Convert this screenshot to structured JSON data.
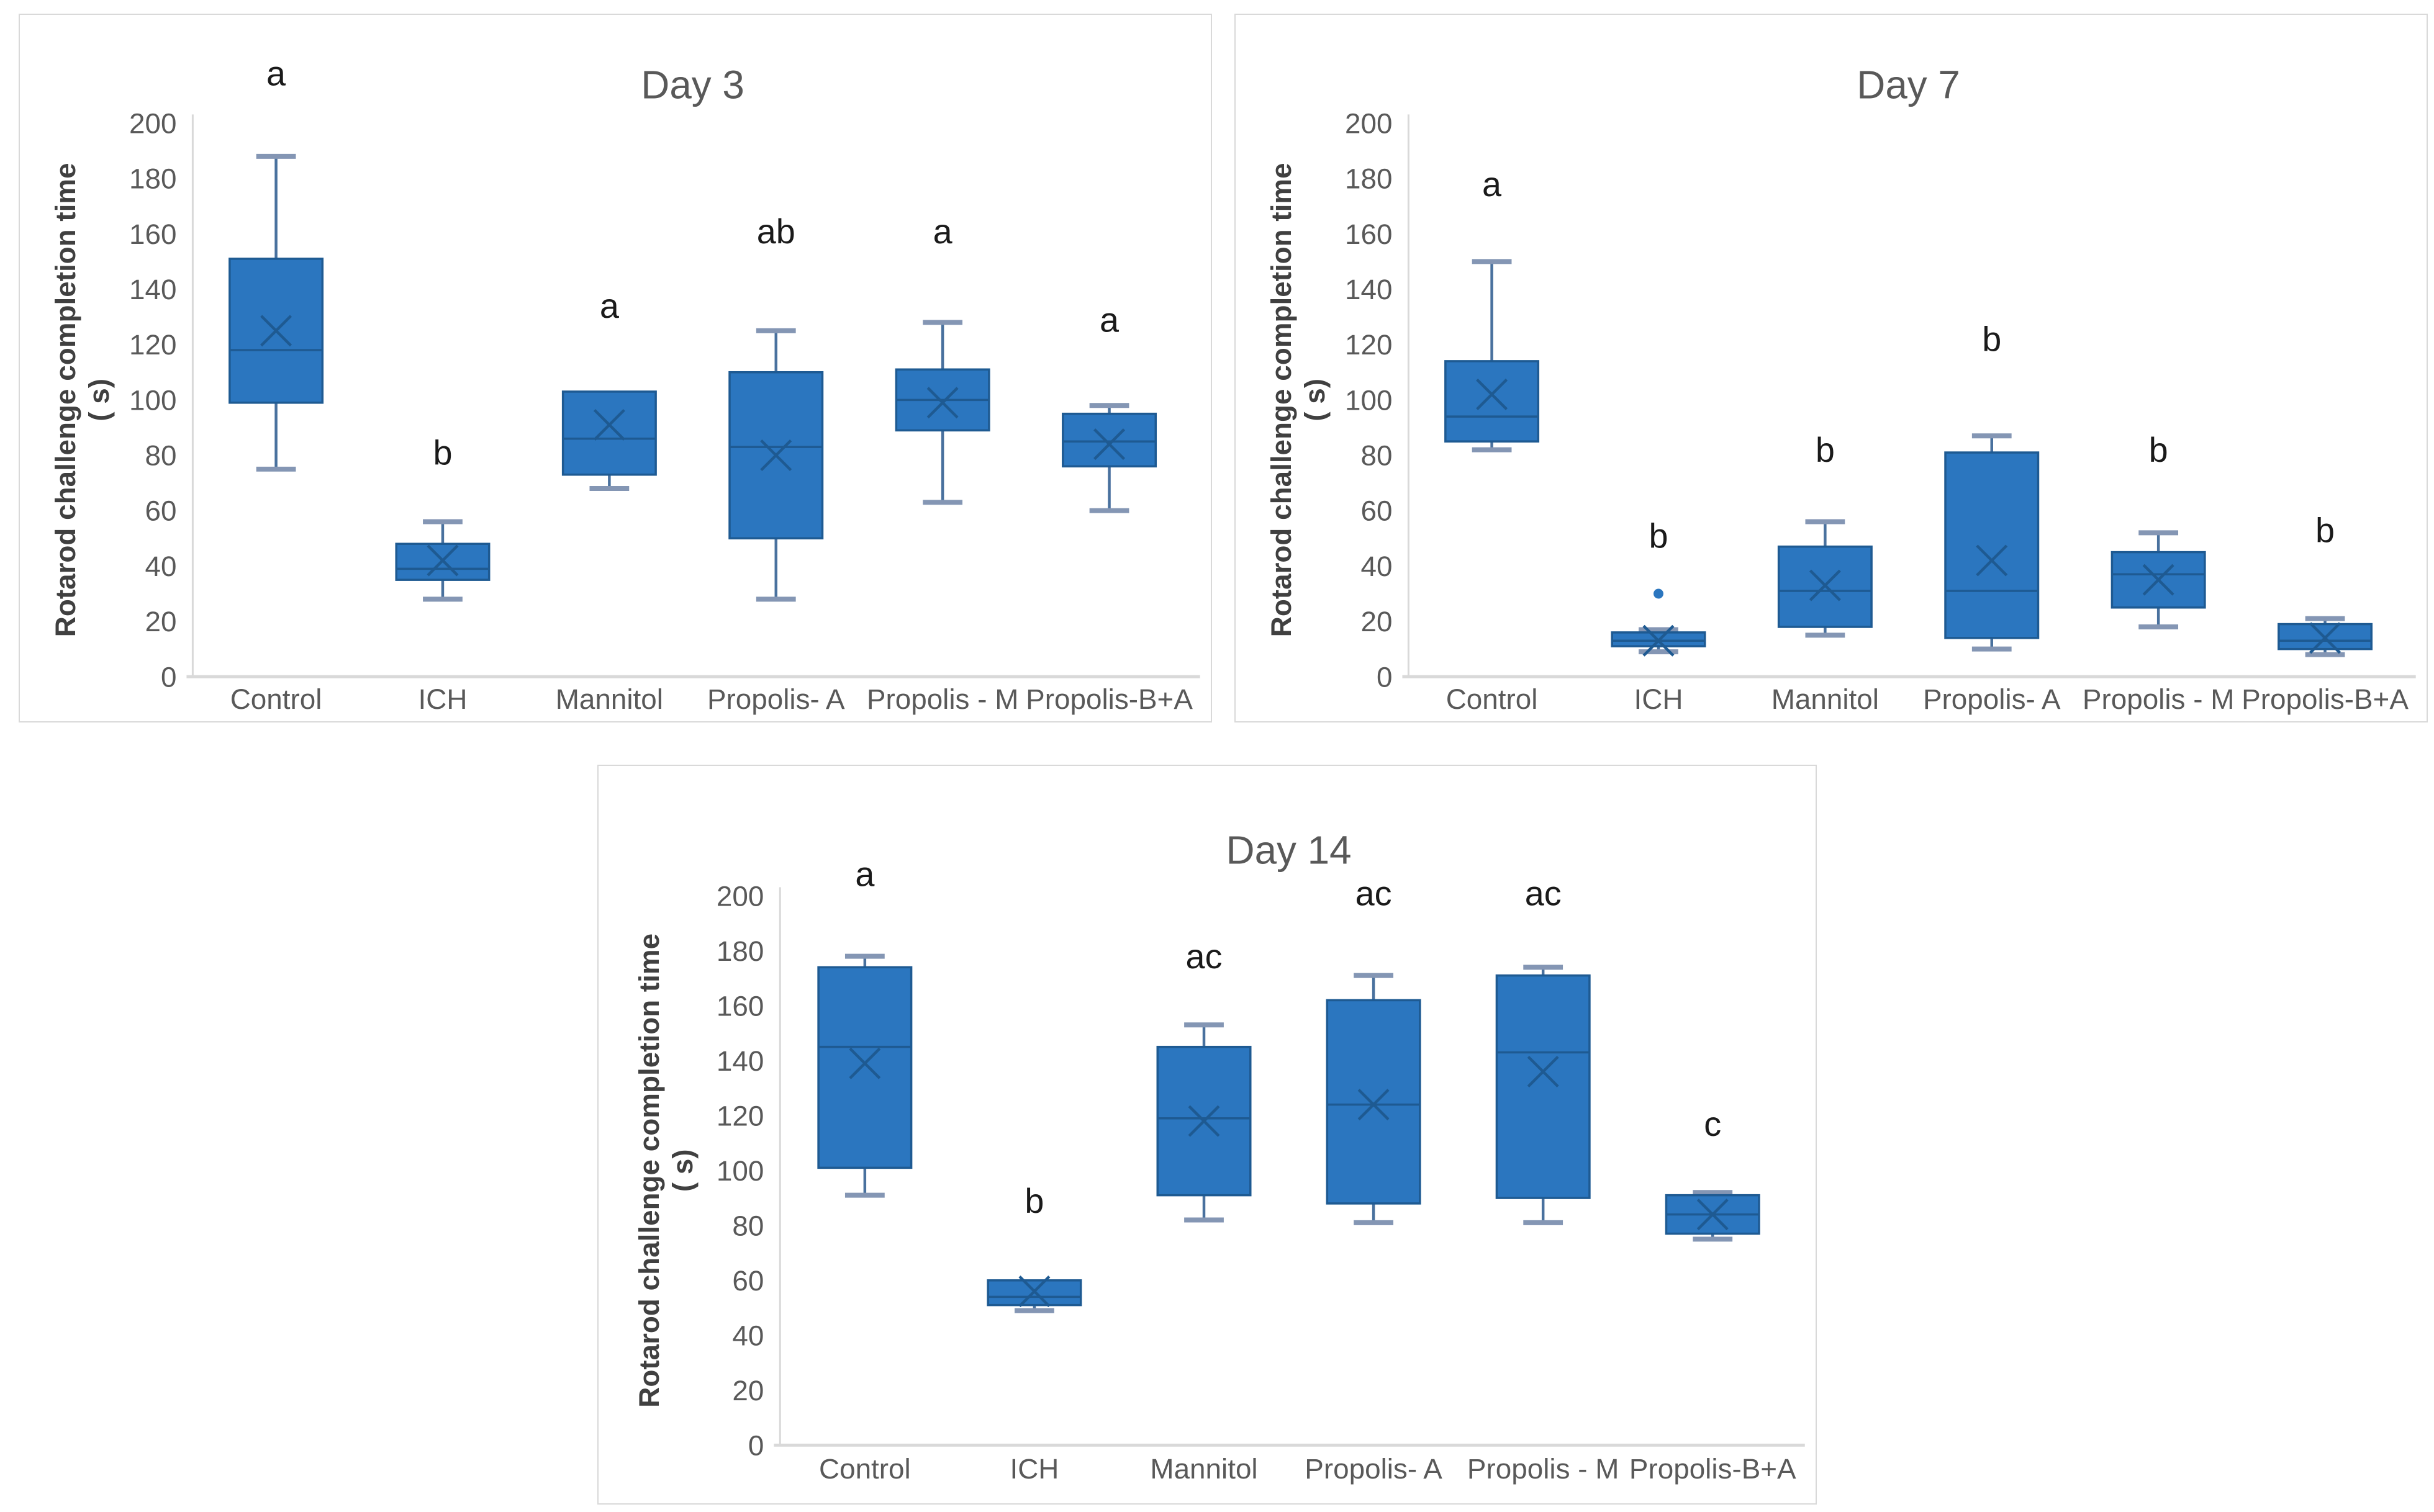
{
  "page": {
    "background": "#ffffff"
  },
  "colors": {
    "box_fill": "#2b76bf",
    "box_border": "#1e5a92",
    "median_line": "#1e5a92",
    "mean_marker": "#1e5a92",
    "whisker_line": "#49719e",
    "whisker_cap": "#8496b4",
    "outlier_dot": "#2b76bf",
    "axis_line": "#d9d9d9",
    "tick_label": "#595959",
    "category_label": "#595959",
    "title_text": "#595959",
    "letter_text": "#1a1a1a",
    "y_axis_label": "#404040",
    "panel_border": "#d9d9d9"
  },
  "y_axis_label": {
    "line1": "Rotarod challenge completion time",
    "line2": "( s)"
  },
  "chart_data": [
    {
      "type": "box",
      "title": "Day 3",
      "ylabel": "Rotarod challenge completion time ( s)",
      "ylim": [
        0,
        200
      ],
      "ytick_step": 20,
      "grid": false,
      "legend": "none",
      "categories": [
        "Control",
        "ICH",
        "Mannitol",
        "Propolis- A",
        "Propolis - M",
        "Propolis-B+A"
      ],
      "series": [
        {
          "category": "Control",
          "min": 75,
          "q1": 99,
          "median": 118,
          "mean": 125,
          "q3": 151,
          "max": 188,
          "outliers": [],
          "letter": "a",
          "letter_y": 218
        },
        {
          "category": "ICH",
          "min": 28,
          "q1": 35,
          "median": 39,
          "mean": 42,
          "q3": 48,
          "max": 56,
          "outliers": [],
          "letter": "b",
          "letter_y": 81
        },
        {
          "category": "Mannitol",
          "min": 68,
          "q1": 73,
          "median": 86,
          "mean": 91,
          "q3": 103,
          "max": 103,
          "outliers": [],
          "letter": "a",
          "letter_y": 134
        },
        {
          "category": "Propolis- A",
          "min": 28,
          "q1": 50,
          "median": 83,
          "mean": 80,
          "q3": 110,
          "max": 125,
          "outliers": [],
          "letter": "ab",
          "letter_y": 161
        },
        {
          "category": "Propolis - M",
          "min": 63,
          "q1": 89,
          "median": 100,
          "mean": 99,
          "q3": 111,
          "max": 128,
          "outliers": [],
          "letter": "a",
          "letter_y": 161
        },
        {
          "category": "Propolis-B+A",
          "min": 60,
          "q1": 76,
          "median": 85,
          "mean": 84,
          "q3": 95,
          "max": 98,
          "outliers": [],
          "letter": "a",
          "letter_y": 129
        }
      ]
    },
    {
      "type": "box",
      "title": "Day 7",
      "ylabel": "Rotarod challenge completion time ( s)",
      "ylim": [
        0,
        200
      ],
      "ytick_step": 20,
      "grid": false,
      "legend": "none",
      "categories": [
        "Control",
        "ICH",
        "Mannitol",
        "Propolis- A",
        "Propolis - M",
        "Propolis-B+A"
      ],
      "series": [
        {
          "category": "Control",
          "min": 82,
          "q1": 85,
          "median": 94,
          "mean": 102,
          "q3": 114,
          "max": 150,
          "outliers": [],
          "letter": "a",
          "letter_y": 178
        },
        {
          "category": "ICH",
          "min": 9,
          "q1": 11,
          "median": 13,
          "mean": 13,
          "q3": 16,
          "max": 17,
          "outliers": [
            30
          ],
          "letter": "b",
          "letter_y": 51
        },
        {
          "category": "Mannitol",
          "min": 15,
          "q1": 18,
          "median": 31,
          "mean": 33,
          "q3": 47,
          "max": 56,
          "outliers": [],
          "letter": "b",
          "letter_y": 82
        },
        {
          "category": "Propolis- A",
          "min": 10,
          "q1": 14,
          "median": 31,
          "mean": 42,
          "q3": 81,
          "max": 87,
          "outliers": [],
          "letter": "b",
          "letter_y": 122
        },
        {
          "category": "Propolis - M",
          "min": 18,
          "q1": 25,
          "median": 37,
          "mean": 35,
          "q3": 45,
          "max": 52,
          "outliers": [],
          "letter": "b",
          "letter_y": 82
        },
        {
          "category": "Propolis-B+A",
          "min": 8,
          "q1": 10,
          "median": 13,
          "mean": 14,
          "q3": 19,
          "max": 21,
          "outliers": [],
          "letter": "b",
          "letter_y": 53
        }
      ]
    },
    {
      "type": "box",
      "title": "Day 14",
      "ylabel": "Rotarod challenge completion time ( s)",
      "ylim": [
        0,
        200
      ],
      "ytick_step": 20,
      "grid": false,
      "legend": "none",
      "categories": [
        "Control",
        "ICH",
        "Mannitol",
        "Propolis- A",
        "Propolis - M",
        "Propolis-B+A"
      ],
      "series": [
        {
          "category": "Control",
          "min": 91,
          "q1": 101,
          "median": 145,
          "mean": 139,
          "q3": 174,
          "max": 178,
          "outliers": [],
          "letter": "a",
          "letter_y": 208
        },
        {
          "category": "ICH",
          "min": 49,
          "q1": 51,
          "median": 54,
          "mean": 56,
          "q3": 60,
          "max": 60,
          "outliers": [],
          "letter": "b",
          "letter_y": 89
        },
        {
          "category": "Mannitol",
          "min": 82,
          "q1": 91,
          "median": 119,
          "mean": 118,
          "q3": 145,
          "max": 153,
          "outliers": [],
          "letter": "ac",
          "letter_y": 178
        },
        {
          "category": "Propolis- A",
          "min": 81,
          "q1": 88,
          "median": 124,
          "mean": 124,
          "q3": 162,
          "max": 171,
          "outliers": [],
          "letter": "ac",
          "letter_y": 201
        },
        {
          "category": "Propolis - M",
          "min": 81,
          "q1": 90,
          "median": 143,
          "mean": 136,
          "q3": 171,
          "max": 174,
          "outliers": [],
          "letter": "ac",
          "letter_y": 201
        },
        {
          "category": "Propolis-B+A",
          "min": 75,
          "q1": 77,
          "median": 84,
          "mean": 84,
          "q3": 91,
          "max": 92,
          "outliers": [],
          "letter": "c",
          "letter_y": 117
        }
      ]
    }
  ]
}
